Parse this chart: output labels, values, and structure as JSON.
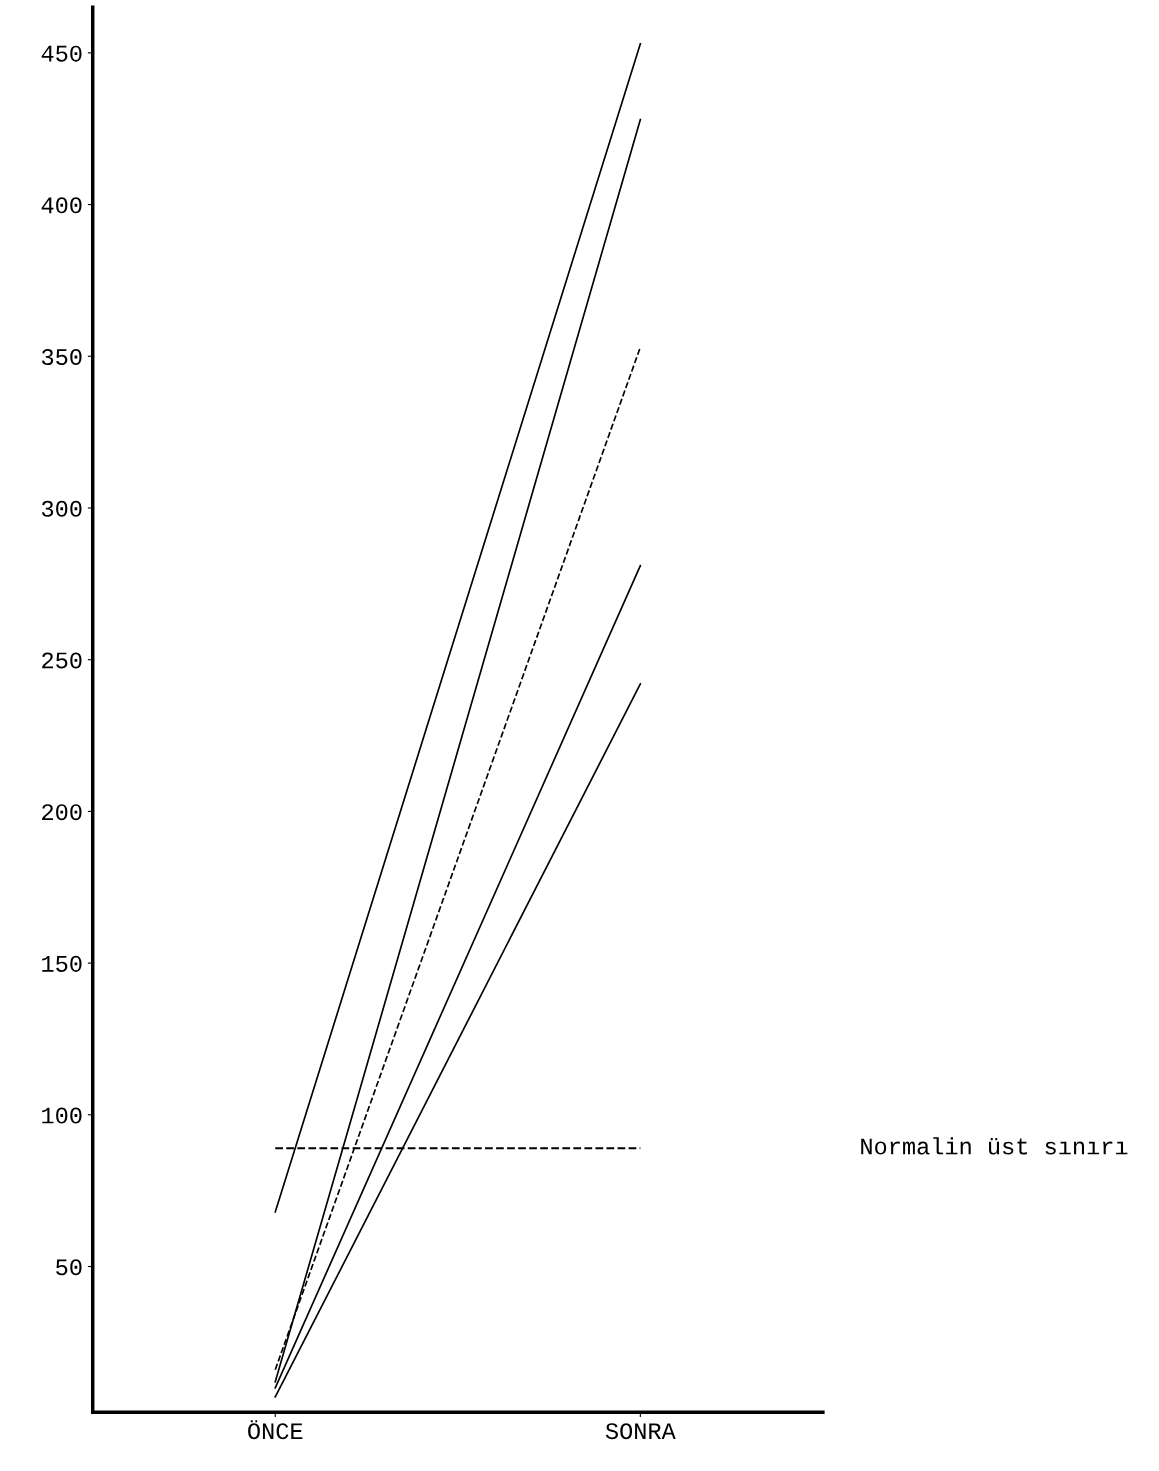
{
  "chart_data": {
    "type": "line",
    "categories": [
      "ÖNCE",
      "SONRA"
    ],
    "series": [
      {
        "color": "#000000",
        "values": [
          68,
          453
        ]
      },
      {
        "color": "#000000",
        "values": [
          12,
          428
        ]
      },
      {
        "color": "#000000",
        "values": [
          16,
          353
        ],
        "line_style": "dashed"
      },
      {
        "color": "#000000",
        "values": [
          10,
          281
        ]
      },
      {
        "color": "#000000",
        "values": [
          7,
          242
        ]
      }
    ],
    "ylim": [
      2,
      465
    ],
    "yticks": [
      50,
      100,
      150,
      200,
      250,
      300,
      350,
      400,
      450
    ],
    "ref_lines": [
      {
        "axis": "y",
        "value": 89,
        "label": "Normalin üst sınırı",
        "line_style": "dashed",
        "color": "#000000"
      }
    ],
    "grid": false,
    "marker": "none"
  }
}
